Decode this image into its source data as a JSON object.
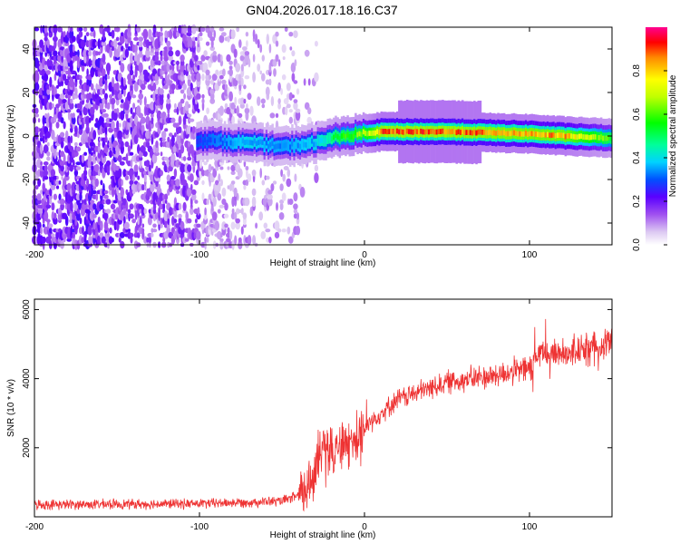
{
  "figure_title": "GN04.2026.017.18.16.C37",
  "chart_data": [
    {
      "type": "heatmap",
      "title": "GN04.2026.017.18.16.C37",
      "xlabel": "Height of straight line (km)",
      "ylabel": "Frequency (Hz)",
      "xlim": [
        -200,
        150
      ],
      "ylim": [
        -50,
        50
      ],
      "xticks": [
        -200,
        -100,
        0,
        100
      ],
      "yticks": [
        -40,
        -20,
        0,
        20,
        40
      ],
      "colorbar": {
        "label": "Normalized spectral amplitude",
        "range": [
          0,
          1
        ],
        "ticks": [
          0.0,
          0.2,
          0.4,
          0.6,
          0.8
        ]
      },
      "ridge": {
        "description_points": [
          {
            "x": -100,
            "freq": -2,
            "amp": 0.3
          },
          {
            "x": -70,
            "freq": -3,
            "amp": 0.4
          },
          {
            "x": -50,
            "freq": -5,
            "amp": 0.35
          },
          {
            "x": -30,
            "freq": -3,
            "amp": 0.4
          },
          {
            "x": -15,
            "freq": 0,
            "amp": 0.6
          },
          {
            "x": 0,
            "freq": 1,
            "amp": 0.7
          },
          {
            "x": 10,
            "freq": 2,
            "amp": 0.95
          },
          {
            "x": 50,
            "freq": 2,
            "amp": 0.95
          },
          {
            "x": 100,
            "freq": 1,
            "amp": 0.9
          },
          {
            "x": 120,
            "freq": 0,
            "amp": 0.9
          },
          {
            "x": 150,
            "freq": -1,
            "amp": 0.6
          }
        ],
        "noise_region_x": [
          -200,
          -40
        ]
      }
    },
    {
      "type": "line",
      "xlabel": "Height of straight line (km)",
      "ylabel": "SNR (10 * v/v)",
      "xlim": [
        -200,
        150
      ],
      "ylim": [
        0,
        6300
      ],
      "xticks": [
        -200,
        -100,
        0,
        100
      ],
      "yticks": [
        2000,
        4000,
        6000
      ],
      "series": [
        {
          "name": "SNR",
          "color": "#ee3333",
          "trend": [
            {
              "x": -200,
              "y": 350
            },
            {
              "x": -100,
              "y": 380
            },
            {
              "x": -50,
              "y": 450
            },
            {
              "x": -35,
              "y": 700
            },
            {
              "x": -25,
              "y": 2000
            },
            {
              "x": -10,
              "y": 2100
            },
            {
              "x": 5,
              "y": 2800
            },
            {
              "x": 20,
              "y": 3400
            },
            {
              "x": 50,
              "y": 3900
            },
            {
              "x": 80,
              "y": 4100
            },
            {
              "x": 100,
              "y": 4300
            },
            {
              "x": 105,
              "y": 4700
            },
            {
              "x": 130,
              "y": 4800
            },
            {
              "x": 150,
              "y": 5100
            }
          ]
        }
      ]
    }
  ]
}
